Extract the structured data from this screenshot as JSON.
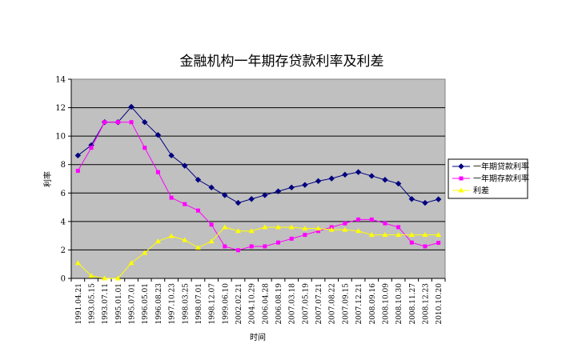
{
  "chart_data": {
    "type": "line",
    "title": "金融机构一年期存贷款利率及利差",
    "xlabel": "时间",
    "ylabel": "利率",
    "ylim": [
      0,
      14
    ],
    "yticks": [
      "0",
      "2",
      "4",
      "6",
      "8",
      "10",
      "12",
      "14"
    ],
    "grid": true,
    "legend_position": "right",
    "plot_background": "#c0c0c0",
    "categories": [
      "1991.04.21",
      "1993.05.15",
      "1993.07.11",
      "1995.01.01",
      "1995.07.01",
      "1996.05.01",
      "1996.08.23",
      "1997.10.23",
      "1998.03.25",
      "1998.07.01",
      "1998.12.07",
      "1999.06.10",
      "2002.02.21",
      "2004.10.29",
      "2006.04.28",
      "2006.08.19",
      "2007.03.18",
      "2007.05.19",
      "2007.07.21",
      "2007.08.22",
      "2007.09.15",
      "2007.12.21",
      "2008.09.16",
      "2008.10.09",
      "2008.10.30",
      "2008.11.27",
      "2008.12.23",
      "2010.10.20"
    ],
    "series": [
      {
        "name": "一年期贷款利率",
        "color": "#000080",
        "marker": "diamond",
        "values": [
          8.64,
          9.36,
          10.98,
          10.98,
          12.06,
          10.98,
          10.08,
          8.64,
          7.92,
          6.93,
          6.39,
          5.85,
          5.31,
          5.58,
          5.85,
          6.12,
          6.39,
          6.57,
          6.84,
          7.02,
          7.29,
          7.47,
          7.2,
          6.93,
          6.66,
          5.58,
          5.31,
          5.56
        ]
      },
      {
        "name": "一年期存款利率",
        "color": "#ff00ff",
        "marker": "square",
        "values": [
          7.56,
          9.18,
          10.98,
          10.98,
          10.98,
          9.18,
          7.47,
          5.67,
          5.22,
          4.77,
          3.78,
          2.25,
          1.98,
          2.25,
          2.25,
          2.52,
          2.79,
          3.06,
          3.33,
          3.6,
          3.87,
          4.14,
          4.14,
          3.87,
          3.6,
          2.52,
          2.25,
          2.5
        ]
      },
      {
        "name": "利差",
        "color": "#ffff00",
        "marker": "triangle",
        "values": [
          1.08,
          0.18,
          0.0,
          0.0,
          1.08,
          1.8,
          2.61,
          2.97,
          2.7,
          2.16,
          2.61,
          3.6,
          3.33,
          3.33,
          3.6,
          3.6,
          3.6,
          3.51,
          3.51,
          3.42,
          3.42,
          3.33,
          3.06,
          3.06,
          3.06,
          3.06,
          3.06,
          3.06
        ]
      }
    ]
  }
}
